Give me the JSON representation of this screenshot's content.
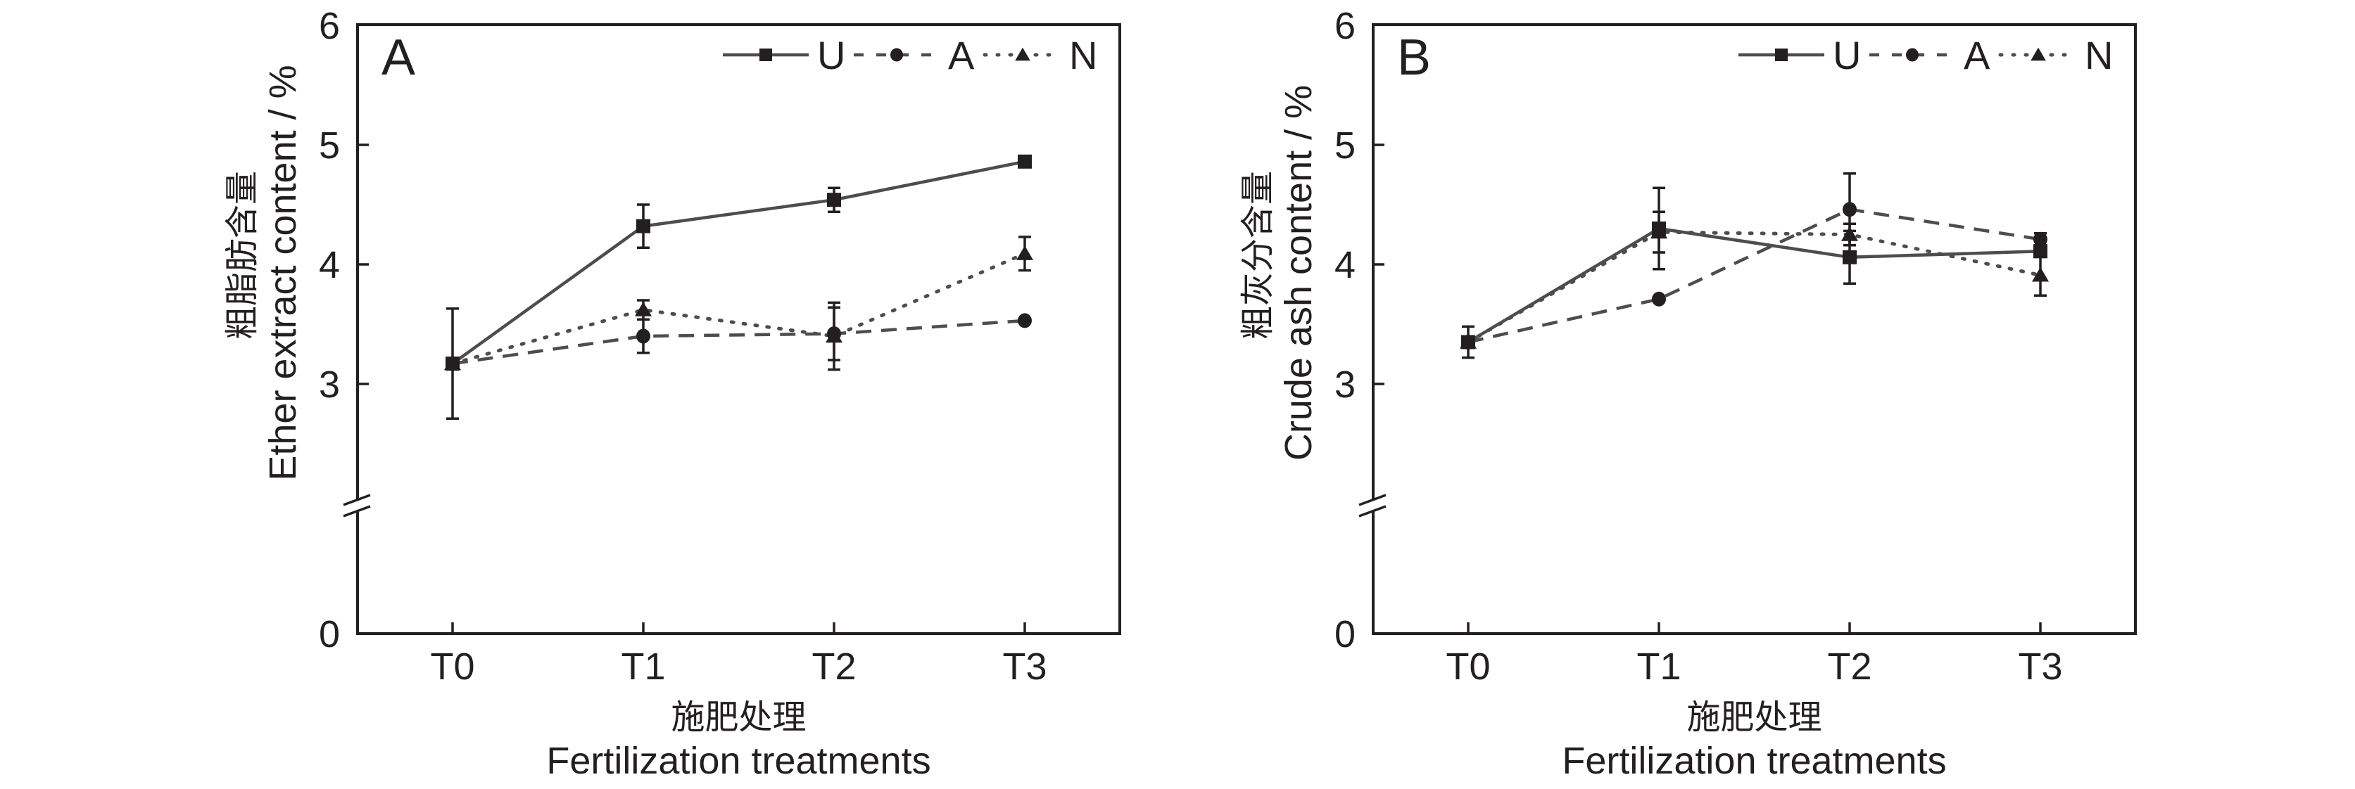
{
  "figure": {
    "colors": {
      "axis": "#231f20",
      "line": "#4d4d4f",
      "marker": "#231f20",
      "background": "#ffffff"
    }
  },
  "chart_data": [
    {
      "type": "line",
      "panel_label": "A",
      "title": "",
      "xlabel_cn": "施肥处理",
      "xlabel": "Fertilization treatments",
      "ylabel_cn": "粗脂肪含量",
      "ylabel": "Ether extract content / %",
      "categories": [
        "T0",
        "T1",
        "T2",
        "T3"
      ],
      "y_ticks": [
        0,
        3,
        4,
        5,
        6
      ],
      "ylim": [
        0,
        6
      ],
      "y_axis_break": {
        "between": [
          0,
          3
        ]
      },
      "grid": false,
      "legend_position": "top-right",
      "legend_orientation": "horizontal",
      "series": [
        {
          "name": "U",
          "marker": "square",
          "line_style": "solid",
          "values": [
            3.17,
            4.32,
            4.54,
            4.86
          ],
          "errors": [
            0.46,
            0.18,
            0.1,
            0.0
          ]
        },
        {
          "name": "A",
          "marker": "circle",
          "line_style": "dashed",
          "values": [
            3.17,
            3.4,
            3.42,
            3.53
          ],
          "errors": [
            0.0,
            0.14,
            0.22,
            0.0
          ]
        },
        {
          "name": "N",
          "marker": "triangle",
          "line_style": "dotted",
          "values": [
            3.17,
            3.62,
            3.4,
            4.09
          ],
          "errors": [
            0.0,
            0.08,
            0.28,
            0.14
          ]
        }
      ]
    },
    {
      "type": "line",
      "panel_label": "B",
      "title": "",
      "xlabel_cn": "施肥处理",
      "xlabel": "Fertilization treatments",
      "ylabel_cn": "粗灰分含量",
      "ylabel": "Crude ash content / %",
      "categories": [
        "T0",
        "T1",
        "T2",
        "T3"
      ],
      "y_ticks": [
        0,
        3,
        4,
        5,
        6
      ],
      "ylim": [
        0,
        6
      ],
      "y_axis_break": {
        "between": [
          0,
          3
        ]
      },
      "grid": false,
      "legend_position": "top-right",
      "legend_orientation": "horizontal",
      "series": [
        {
          "name": "U",
          "marker": "square",
          "line_style": "solid",
          "values": [
            3.35,
            4.3,
            4.06,
            4.11
          ],
          "errors": [
            0.13,
            0.34,
            0.22,
            0.0
          ]
        },
        {
          "name": "A",
          "marker": "circle",
          "line_style": "dashed",
          "values": [
            3.35,
            3.71,
            4.46,
            4.21
          ],
          "errors": [
            0.0,
            0.0,
            0.3,
            0.05
          ]
        },
        {
          "name": "N",
          "marker": "triangle",
          "line_style": "dotted",
          "values": [
            3.35,
            4.27,
            4.25,
            3.91
          ],
          "errors": [
            0.0,
            0.17,
            0.09,
            0.17
          ]
        }
      ]
    }
  ]
}
